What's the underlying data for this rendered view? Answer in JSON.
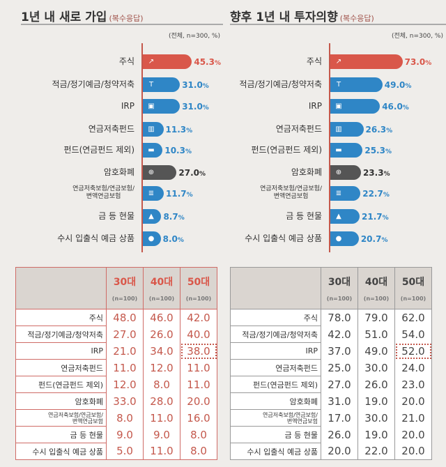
{
  "colors": {
    "red": "#d9574a",
    "blue": "#2f86c6",
    "dark": "#555555",
    "bg": "#efedea"
  },
  "chart_data": [
    {
      "type": "bar",
      "title": "1년 내 새로 가입",
      "subtitle": "(복수응답)",
      "note": "(전체, n=300, %)",
      "categories": [
        "주식",
        "적금/정기예금/청약저축",
        "IRP",
        "연금저축펀드",
        "펀드(연금펀드 제외)",
        "암호화폐",
        "연금저축보험/연금보험/변액연금보험",
        "금 등 현물",
        "수시 입출식 예금 상품"
      ],
      "icons": [
        "stock-chart-icon",
        "savings-icon",
        "briefcase-icon",
        "pension-fund-icon",
        "folder-icon",
        "crypto-icon",
        "ledger-icon",
        "gold-bars-icon",
        "piggy-bank-icon"
      ],
      "values": [
        45.3,
        31.0,
        31.0,
        11.3,
        10.3,
        27.0,
        11.7,
        8.7,
        8.0
      ],
      "unit": "%",
      "bar_colors": [
        "red",
        "blue",
        "blue",
        "blue",
        "blue",
        "dark",
        "blue",
        "blue",
        "blue"
      ],
      "table": {
        "columns": [
          {
            "age": "30대",
            "n": "(n=100)"
          },
          {
            "age": "40대",
            "n": "(n=100)"
          },
          {
            "age": "50대",
            "n": "(n=100)"
          }
        ],
        "rows": [
          [
            "48.0",
            "46.0",
            "42.0"
          ],
          [
            "27.0",
            "26.0",
            "40.0"
          ],
          [
            "21.0",
            "34.0",
            "38.0"
          ],
          [
            "11.0",
            "12.0",
            "11.0"
          ],
          [
            "12.0",
            "8.0",
            "11.0"
          ],
          [
            "33.0",
            "28.0",
            "20.0"
          ],
          [
            "8.0",
            "11.0",
            "16.0"
          ],
          [
            "9.0",
            "9.0",
            "8.0"
          ],
          [
            "5.0",
            "11.0",
            "8.0"
          ]
        ],
        "highlight": {
          "row": 2,
          "col": 2
        }
      }
    },
    {
      "type": "bar",
      "title": "향후 1년 내 투자의향",
      "subtitle": "(복수응답)",
      "note": "(전체, n=300, %)",
      "categories": [
        "주식",
        "적금/정기예금/청약저축",
        "IRP",
        "연금저축펀드",
        "펀드(연금펀드 제외)",
        "암호화폐",
        "연금저축보험/연금보험/변액연금보험",
        "금 등 현물",
        "수시 입출식 예금 상품"
      ],
      "icons": [
        "stock-chart-icon",
        "savings-icon",
        "briefcase-icon",
        "pension-fund-icon",
        "folder-icon",
        "crypto-icon",
        "ledger-icon",
        "gold-bars-icon",
        "piggy-bank-icon"
      ],
      "values": [
        73.0,
        49.0,
        46.0,
        26.3,
        25.3,
        23.3,
        22.7,
        21.7,
        20.7
      ],
      "unit": "%",
      "bar_colors": [
        "red",
        "blue",
        "blue",
        "blue",
        "blue",
        "dark",
        "blue",
        "blue",
        "blue"
      ],
      "table": {
        "columns": [
          {
            "age": "30대",
            "n": "(n=100)"
          },
          {
            "age": "40대",
            "n": "(n=100)"
          },
          {
            "age": "50대",
            "n": "(n=100)"
          }
        ],
        "rows": [
          [
            "78.0",
            "79.0",
            "62.0"
          ],
          [
            "42.0",
            "51.0",
            "54.0"
          ],
          [
            "37.0",
            "49.0",
            "52.0"
          ],
          [
            "25.0",
            "30.0",
            "24.0"
          ],
          [
            "27.0",
            "26.0",
            "23.0"
          ],
          [
            "31.0",
            "19.0",
            "20.0"
          ],
          [
            "17.0",
            "30.0",
            "21.0"
          ],
          [
            "26.0",
            "19.0",
            "20.0"
          ],
          [
            "20.0",
            "22.0",
            "20.0"
          ]
        ],
        "highlight": {
          "row": 2,
          "col": 2
        }
      }
    }
  ]
}
